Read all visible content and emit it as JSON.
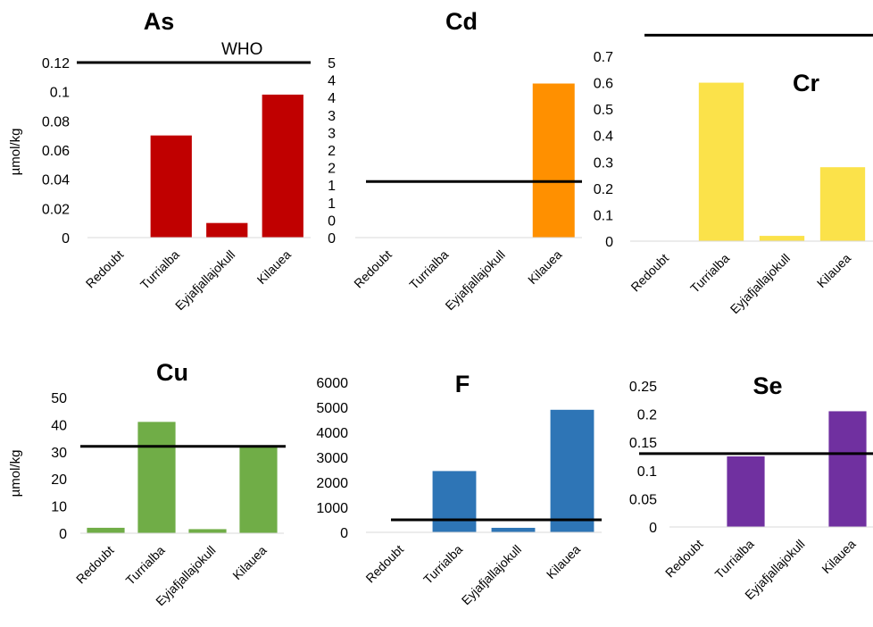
{
  "chart_data": [
    {
      "type": "bar",
      "title": "As",
      "ylabel": "µmol/kg",
      "categories": [
        "Redoubt",
        "Turrialba",
        "Eyjafjallajokull",
        "Kilauea"
      ],
      "values": [
        0,
        0.07,
        0.01,
        0.098
      ],
      "ylim": [
        0,
        0.12
      ],
      "yticks": [
        "0",
        "0.02",
        "0.04",
        "0.06",
        "0.08",
        "0.1",
        "0.12"
      ],
      "color": "#c00000",
      "reference_line": 0.12,
      "reference_label": "WHO"
    },
    {
      "type": "bar",
      "title": "Cd",
      "ylabel": "",
      "categories": [
        "Redoubt",
        "Turrialba",
        "Eyjafjallajokull",
        "Kilauea"
      ],
      "values": [
        0,
        0,
        0,
        4.4
      ],
      "ylim": [
        0,
        5
      ],
      "yticks": [
        "0",
        "0",
        "1",
        "1",
        "2",
        "2",
        "3",
        "3",
        "4",
        "4",
        "5"
      ],
      "color": "#ff9000",
      "reference_line": 1.6
    },
    {
      "type": "bar",
      "title": "Cr",
      "ylabel": "",
      "categories": [
        "Redoubt",
        "Turrialba",
        "Eyjafjallajokull",
        "Kilauea"
      ],
      "values": [
        0,
        0.6,
        0.02,
        0.28
      ],
      "ylim": [
        0,
        0.7
      ],
      "yticks": [
        "0",
        "0.1",
        "0.2",
        "0.3",
        "0.4",
        "0.5",
        "0.6",
        "0.7"
      ],
      "color": "#fbe24a",
      "reference_line": 0.78
    },
    {
      "type": "bar",
      "title": "Cu",
      "ylabel": "µmol/kg",
      "categories": [
        "Redoubt",
        "Turrialba",
        "Eyjafjallajokull",
        "Kilauea"
      ],
      "values": [
        2,
        41,
        1.5,
        32
      ],
      "ylim": [
        0,
        50
      ],
      "yticks": [
        "0",
        "10",
        "20",
        "30",
        "40",
        "50"
      ],
      "color": "#70ad47",
      "reference_line": 32
    },
    {
      "type": "bar",
      "title": "F",
      "ylabel": "",
      "categories": [
        "Redoubt",
        "Turrialba",
        "Eyjafjallajokull",
        "Kilauea"
      ],
      "values": [
        0,
        2450,
        180,
        4900
      ],
      "ylim": [
        0,
        6000
      ],
      "yticks": [
        "0",
        "1000",
        "2000",
        "3000",
        "4000",
        "5000",
        "6000"
      ],
      "color": "#2e75b6",
      "reference_line": 500
    },
    {
      "type": "bar",
      "title": "Se",
      "ylabel": "",
      "categories": [
        "Redoubt",
        "Turrialba",
        "Eyjafjallajokull",
        "Kilauea"
      ],
      "values": [
        0,
        0.125,
        0,
        0.205
      ],
      "ylim": [
        0,
        0.25
      ],
      "yticks": [
        "0",
        "0.05",
        "0.1",
        "0.15",
        "0.2",
        "0.25"
      ],
      "color": "#7030a0",
      "reference_line": 0.13
    }
  ]
}
